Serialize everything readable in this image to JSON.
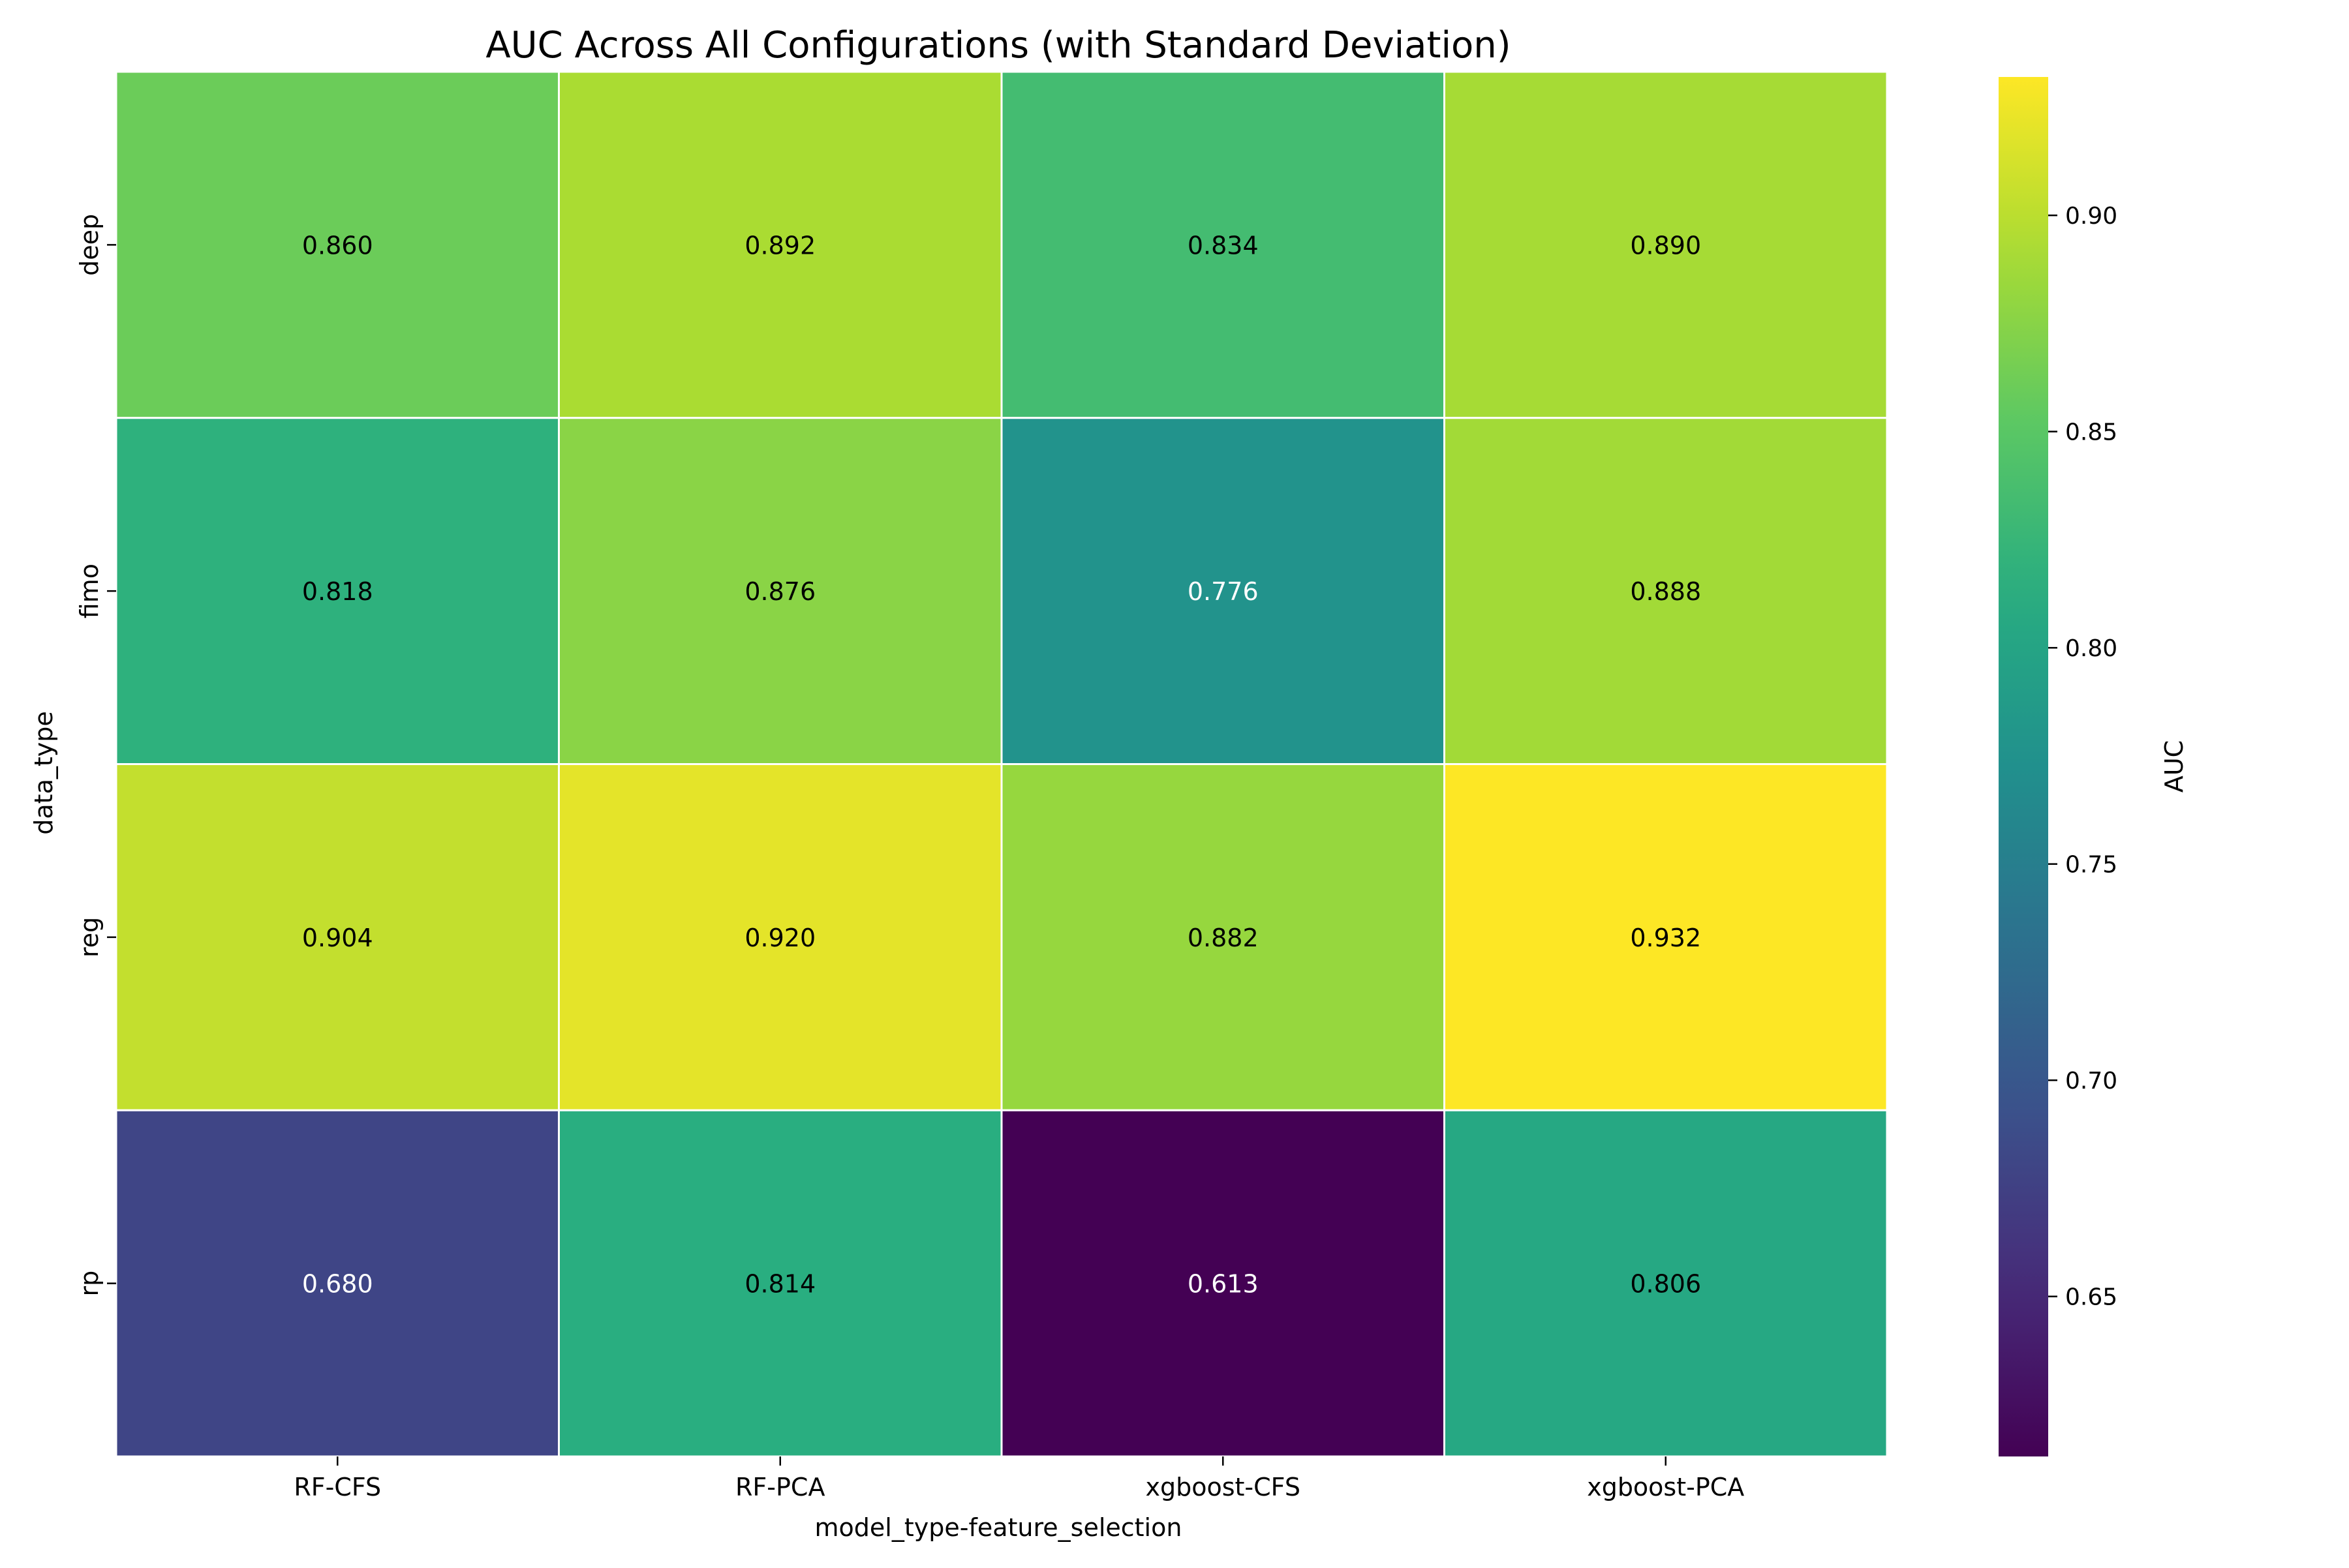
{
  "chart_data": {
    "type": "heatmap",
    "title": "AUC Across All Configurations (with Standard Deviation)",
    "xlabel": "model_type-feature_selection",
    "ylabel": "data_type",
    "x_categories": [
      "RF-CFS",
      "RF-PCA",
      "xgboost-CFS",
      "xgboost-PCA"
    ],
    "y_categories": [
      "deep",
      "fimo",
      "reg",
      "rp"
    ],
    "values": [
      [
        0.86,
        0.892,
        0.834,
        0.89
      ],
      [
        0.818,
        0.876,
        0.776,
        0.888
      ],
      [
        0.904,
        0.92,
        0.882,
        0.932
      ],
      [
        0.68,
        0.814,
        0.613,
        0.806
      ]
    ],
    "cell_labels": [
      [
        "0.860",
        "0.892",
        "0.834",
        "0.890"
      ],
      [
        "0.818",
        "0.876",
        "0.776",
        "0.888"
      ],
      [
        "0.904",
        "0.920",
        "0.882",
        "0.932"
      ],
      [
        "0.680",
        "0.814",
        "0.613",
        "0.806"
      ]
    ],
    "colorbar": {
      "label": "AUC",
      "colormap": "viridis",
      "vmin": 0.613,
      "vmax": 0.932,
      "ticks": [
        0.65,
        0.7,
        0.75,
        0.8,
        0.85,
        0.9
      ],
      "tick_labels": [
        "0.65",
        "0.70",
        "0.75",
        "0.80",
        "0.85",
        "0.90"
      ]
    },
    "grid": false,
    "cell_border_color": "#ffffff",
    "dark_text_color": "#000000",
    "light_text_color": "#ffffff"
  }
}
